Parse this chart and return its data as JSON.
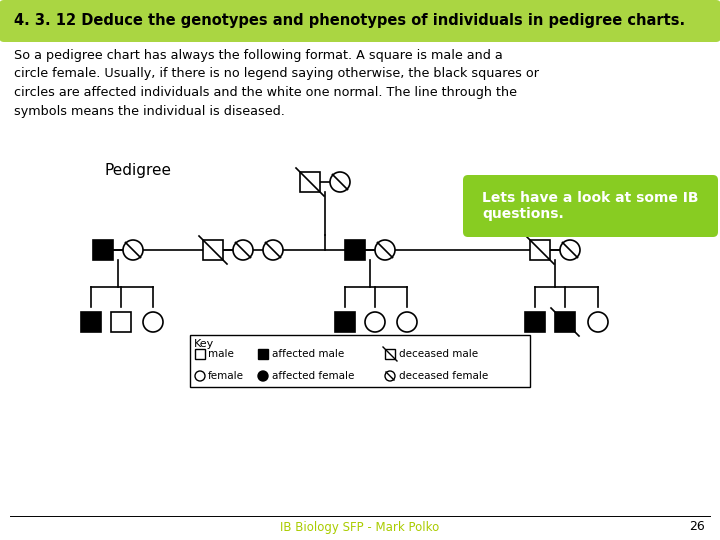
{
  "title": "4. 3. 12 Deduce the genotypes and phenotypes of individuals in pedigree charts.",
  "title_bg": "#aad642",
  "title_fg": "#000000",
  "body_text": "So a pedigree chart has always the following format. A square is male and a\ncircle female. Usually, if there is no legend saying otherwise, the black squares or\ncircles are affected individuals and the white one normal. The line through the\nsymbols means the individual is diseased.",
  "callout_text": "Lets have a look at some IB\nquestions.",
  "callout_bg": "#88cc22",
  "footer_text": "IB Biology SFP - Mark Polko",
  "footer_color": "#aacc00",
  "page_number": "26",
  "bg_color": "#ffffff"
}
